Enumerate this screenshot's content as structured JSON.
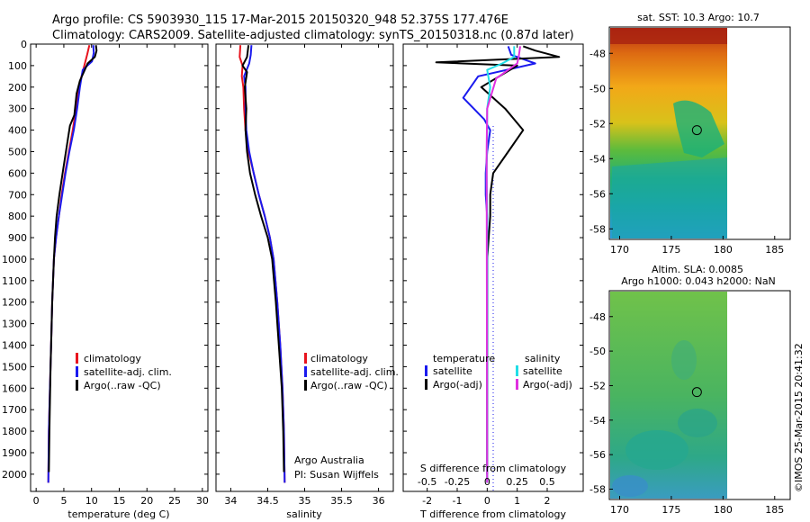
{
  "header": {
    "line1": "Argo profile: CS 5903930_115 17-Mar-2015 20150320_948 52.375S 177.476E",
    "line2": "Climatology: CARS2009. Satellite-adjusted climatology: synTS_20150318.nc (0.87d later)"
  },
  "credit": "©IMOS 25-Mar-2015 20:41:32",
  "colors": {
    "climatology": "#e8141e",
    "satellite": "#1a1aee",
    "argo": "#000000",
    "sal_satellite": "#22dde6",
    "sal_argo": "#e030e0"
  },
  "chart_data": [
    {
      "id": "temperature",
      "type": "line",
      "xlabel": "temperature (deg C)",
      "ylabel": "",
      "xlim": [
        -1,
        31
      ],
      "ylim": [
        2080,
        0
      ],
      "xticks": [
        "0",
        "5",
        "10",
        "15",
        "20",
        "25",
        "30"
      ],
      "xtick_values": [
        0,
        5,
        10,
        15,
        20,
        25,
        30
      ],
      "yticks": [
        "0",
        "100",
        "200",
        "300",
        "400",
        "500",
        "600",
        "700",
        "800",
        "900",
        "1000",
        "1100",
        "1200",
        "1300",
        "1400",
        "1500",
        "1600",
        "1700",
        "1800",
        "1900",
        "2000"
      ],
      "ytick_values": [
        0,
        100,
        200,
        300,
        400,
        500,
        600,
        700,
        800,
        900,
        1000,
        1100,
        1200,
        1300,
        1400,
        1500,
        1600,
        1700,
        1800,
        1900,
        2000
      ],
      "legend": [
        "climatology",
        "satellite-adj. clim.",
        "Argo(..raw -QC)"
      ],
      "series": [
        {
          "name": "climatology",
          "color": "#e8141e",
          "x": [
            9.6,
            9.2,
            8.7,
            8.2,
            7.7,
            7.2,
            6.6,
            5.9,
            5.2,
            4.6,
            4.1,
            3.6,
            3.2,
            2.9,
            2.7,
            2.5,
            2.3,
            2.2
          ],
          "y": [
            5,
            50,
            100,
            150,
            200,
            300,
            400,
            500,
            600,
            700,
            800,
            900,
            1000,
            1200,
            1400,
            1600,
            1800,
            2040
          ]
        },
        {
          "name": "satellite-adj. clim.",
          "color": "#1a1aee",
          "x": [
            10.3,
            10.4,
            10.1,
            8.4,
            7.9,
            7.4,
            6.8,
            6.0,
            5.3,
            4.7,
            4.1,
            3.6,
            3.2,
            2.9,
            2.7,
            2.5,
            2.3,
            2.2
          ],
          "y": [
            5,
            40,
            80,
            120,
            200,
            300,
            400,
            500,
            600,
            700,
            800,
            900,
            1000,
            1200,
            1400,
            1600,
            1800,
            2040
          ]
        },
        {
          "name": "Argo(..raw -QC)",
          "color": "#000000",
          "x": [
            10.8,
            10.9,
            10.6,
            9.3,
            8.6,
            7.9,
            7.3,
            6.9,
            6.1,
            5.5,
            4.9,
            4.2,
            3.7,
            3.4,
            3.2,
            2.9,
            2.6,
            2.4,
            2.3
          ],
          "y": [
            5,
            30,
            60,
            90,
            130,
            170,
            230,
            330,
            380,
            480,
            580,
            700,
            800,
            900,
            1000,
            1200,
            1500,
            1800,
            1990
          ]
        }
      ]
    },
    {
      "id": "salinity",
      "type": "line",
      "xlabel": "salinity",
      "ylabel": "",
      "xlim": [
        33.8,
        36.2
      ],
      "ylim": [
        2080,
        0
      ],
      "xticks": [
        "34",
        "34.5",
        "35",
        "35.5",
        "36"
      ],
      "xtick_values": [
        34,
        34.5,
        35,
        35.5,
        36
      ],
      "legend": [
        "climatology",
        "satellite-adj. clim.",
        "Argo(..raw -QC)"
      ],
      "annotation": [
        "Argo Australia",
        "PI: Susan Wijffels"
      ],
      "series": [
        {
          "name": "climatology",
          "color": "#e8141e",
          "x": [
            34.13,
            34.12,
            34.16,
            34.15,
            34.17,
            34.18,
            34.2,
            34.24,
            34.31,
            34.38,
            34.46,
            34.53,
            34.58,
            34.63,
            34.67,
            34.7,
            34.72,
            34.73
          ],
          "y": [
            5,
            60,
            100,
            150,
            200,
            300,
            400,
            500,
            600,
            700,
            800,
            900,
            1000,
            1200,
            1400,
            1600,
            1800,
            2040
          ]
        },
        {
          "name": "satellite-adj. clim.",
          "color": "#1a1aee",
          "x": [
            34.28,
            34.27,
            34.25,
            34.18,
            34.2,
            34.2,
            34.21,
            34.25,
            34.31,
            34.38,
            34.46,
            34.53,
            34.58,
            34.63,
            34.67,
            34.7,
            34.72,
            34.73
          ],
          "y": [
            5,
            50,
            90,
            150,
            200,
            300,
            400,
            500,
            600,
            700,
            800,
            900,
            1000,
            1200,
            1400,
            1600,
            1800,
            2040
          ]
        },
        {
          "name": "Argo(..raw -QC)",
          "color": "#000000",
          "x": [
            34.24,
            34.22,
            34.16,
            34.22,
            34.19,
            34.21,
            34.2,
            34.22,
            34.26,
            34.33,
            34.41,
            34.5,
            34.56,
            34.61,
            34.65,
            34.69,
            34.71,
            34.72
          ],
          "y": [
            5,
            60,
            100,
            130,
            200,
            300,
            400,
            500,
            600,
            700,
            800,
            900,
            1000,
            1200,
            1400,
            1600,
            1800,
            1990
          ]
        }
      ]
    },
    {
      "id": "difference",
      "type": "line",
      "xlabel": "T difference from climatology",
      "top_label": "S difference from climatology",
      "xlim": [
        -2.8,
        3.2
      ],
      "ylim": [
        2080,
        0
      ],
      "xticks": [
        "-2",
        "-1",
        "0",
        "1",
        "2"
      ],
      "xtick_values": [
        -2,
        -1,
        0,
        1,
        2
      ],
      "s_ticks": [
        "-0.5",
        "-0.25",
        "0",
        "0.25",
        "0.5"
      ],
      "s_tick_values": [
        -0.5,
        -0.25,
        0,
        0.25,
        0.5
      ],
      "legend_titles": [
        "temperature",
        "salinity"
      ],
      "legend": [
        "satellite",
        "Argo(-adj)",
        "satellite",
        "Argo(-adj)"
      ],
      "series": [
        {
          "name": "satellite",
          "color": "#1a1aee",
          "x": [
            0.7,
            0.8,
            1.2,
            1.6,
            -0.3,
            -0.8,
            -0.1,
            0.1,
            0.0,
            -0.05,
            -0.05,
            0.0,
            0.0,
            0.0,
            0.0,
            0.0,
            0.0
          ],
          "y": [
            10,
            50,
            70,
            90,
            150,
            250,
            350,
            400,
            500,
            600,
            700,
            800,
            900,
            1000,
            1400,
            1800,
            2040
          ]
        },
        {
          "name": "Argo(-adj)",
          "color": "#000000",
          "x": [
            1.2,
            1.6,
            2.4,
            -1.7,
            1.0,
            -0.2,
            0.6,
            1.2,
            0.7,
            0.2,
            0.1,
            0.1,
            0.05,
            0.0,
            0.0,
            0.0
          ],
          "y": [
            10,
            30,
            60,
            85,
            100,
            200,
            300,
            400,
            500,
            600,
            700,
            800,
            900,
            1000,
            1500,
            2000
          ]
        },
        {
          "name": "satellite",
          "color": "#22dde6",
          "x": [
            0.9,
            0.9,
            0.5,
            0.0,
            0.1,
            0.0,
            0.0,
            -0.02,
            0.0,
            0.0,
            0.0,
            0.0,
            0.0
          ],
          "y": [
            10,
            60,
            90,
            120,
            200,
            300,
            400,
            600,
            800,
            1000,
            1400,
            1800,
            2040
          ]
        },
        {
          "name": "Argo(-adj)",
          "color": "#e030e0",
          "x": [
            1.1,
            1.05,
            1.0,
            0.3,
            0.0,
            -0.02,
            0.0
          ],
          "y": [
            10,
            60,
            90,
            160,
            300,
            500,
            2040
          ]
        }
      ]
    },
    {
      "id": "sst_map",
      "type": "heatmap",
      "title": "sat. SST: 10.3 Argo: 10.7",
      "xticks": [
        "170",
        "175",
        "180",
        "185"
      ],
      "xtick_values": [
        170,
        175,
        180,
        185
      ],
      "yticks": [
        "-48",
        "-50",
        "-52",
        "-54",
        "-56",
        "-58"
      ],
      "ytick_values": [
        -48,
        -50,
        -52,
        -54,
        -56,
        -58
      ],
      "xlim": [
        169,
        186.5
      ],
      "ylim": [
        -58.6,
        -46.5
      ],
      "marker": {
        "lon": 177.476,
        "lat": -52.375
      }
    },
    {
      "id": "sla_map",
      "type": "heatmap",
      "title": [
        "Altim. SLA: 0.0085",
        "Argo h1000: 0.043 h2000: NaN"
      ],
      "xticks": [
        "170",
        "175",
        "180",
        "185"
      ],
      "xtick_values": [
        170,
        175,
        180,
        185
      ],
      "yticks": [
        "-48",
        "-50",
        "-52",
        "-54",
        "-56",
        "-58"
      ],
      "ytick_values": [
        -48,
        -50,
        -52,
        -54,
        -56,
        -58
      ],
      "xlim": [
        169,
        186.5
      ],
      "ylim": [
        -58.6,
        -46.5
      ],
      "marker": {
        "lon": 177.476,
        "lat": -52.375
      }
    }
  ]
}
